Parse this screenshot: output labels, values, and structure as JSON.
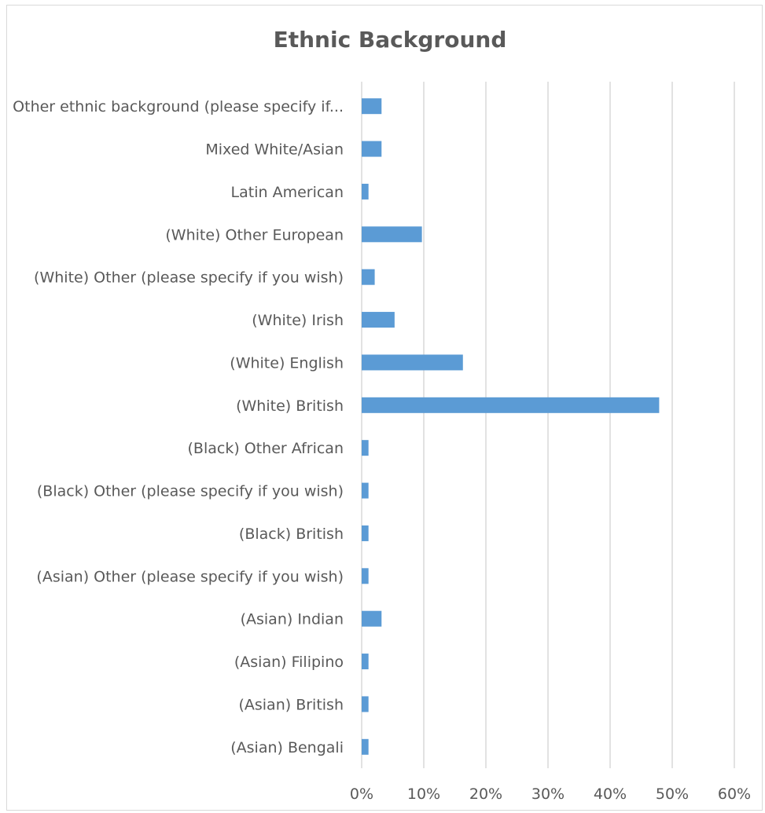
{
  "chart_data": {
    "type": "bar",
    "orientation": "horizontal",
    "title": "Ethnic Background",
    "xlabel": "",
    "ylabel": "",
    "categories": [
      "Other ethnic background (please specify if...",
      "Mixed White/Asian",
      "Latin American",
      "(White) Other European",
      "(White) Other (please specify if you wish)",
      "(White) Irish",
      "(White) English",
      "(White) British",
      "(Black) Other African",
      "(Black) Other (please specify if you wish)",
      "(Black) British",
      "(Asian) Other (please specify if you wish)",
      "(Asian) Indian",
      "(Asian) Filipino",
      "(Asian) British",
      "(Asian) Bengali"
    ],
    "values": [
      3.2,
      3.2,
      1.1,
      9.7,
      2.1,
      5.3,
      16.3,
      47.9,
      1.1,
      1.1,
      1.1,
      1.1,
      3.2,
      1.1,
      1.1,
      1.1
    ],
    "xlim": [
      0,
      60
    ],
    "xticks": [
      "0%",
      "10%",
      "20%",
      "30%",
      "40%",
      "50%",
      "60%"
    ],
    "bar_color": "#5b9bd5",
    "grid": true
  }
}
